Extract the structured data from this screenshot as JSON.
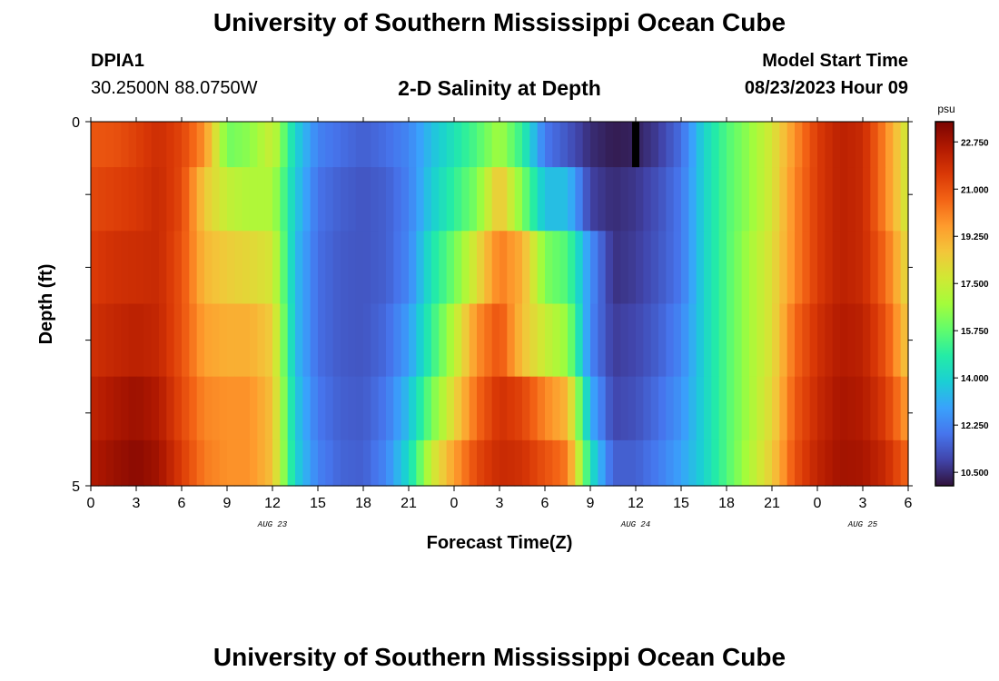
{
  "header": {
    "title": "University of Southern Mississippi Ocean Cube",
    "station_id": "DPIA1",
    "station_coords": "30.2500N  88.0750W",
    "plot_title": "2-D Salinity at Depth",
    "model_start_label": "Model Start Time",
    "model_start_value": "08/23/2023 Hour 09"
  },
  "footer": {
    "title": "University of Southern Mississippi Ocean Cube"
  },
  "colors": {
    "background": "#ffffff",
    "missing": "#000000"
  },
  "chart_data": {
    "type": "heatmap",
    "xlabel": "Forecast Time(Z)",
    "ylabel": "Depth (ft)",
    "colorbar_unit": "psu",
    "x_hours": [
      0,
      54
    ],
    "x_tick_labels": [
      "0",
      "3",
      "6",
      "9",
      "12",
      "15",
      "18",
      "21",
      "0",
      "3",
      "6",
      "9",
      "12",
      "15",
      "18",
      "21",
      "0",
      "3",
      "6"
    ],
    "date_labels": [
      {
        "label": "AUG 23",
        "hour": 12
      },
      {
        "label": "AUG 24",
        "hour": 36
      },
      {
        "label": "AUG 25",
        "hour": 51
      }
    ],
    "y_tick_labels": [
      "0",
      "5"
    ],
    "ylim": [
      0,
      5
    ],
    "colorbar_range": [
      10.0,
      23.5
    ],
    "colorbar_ticks": [
      "10.500",
      "12.250",
      "14.000",
      "15.750",
      "17.500",
      "19.250",
      "21.000",
      "22.750"
    ],
    "colorscale": [
      "#30123b",
      "#4145ab",
      "#4675ed",
      "#39a2fc",
      "#1bcfd4",
      "#24eca6",
      "#61fc6c",
      "#a4fc3b",
      "#d1e834",
      "#f3c63a",
      "#fe9b2d",
      "#f36315",
      "#d93806",
      "#b11901",
      "#7a0402"
    ],
    "rows": [
      {
        "depth": 0.25,
        "values": [
          20.9,
          21.0,
          21.4,
          21.9,
          21.3,
          19.8,
          16.0,
          16.4,
          17.6,
          14.0,
          12.2,
          11.8,
          11.5,
          11.8,
          12.3,
          13.5,
          14.5,
          15.5,
          16.8,
          15.0,
          12.0,
          11.3,
          10.5,
          10.2,
          10.3,
          10.8,
          11.8,
          14.0,
          15.5,
          16.5,
          17.8,
          19.8,
          21.5,
          22.3,
          22.0,
          20.0,
          17.5
        ]
      },
      {
        "depth": 1.0,
        "values": [
          21.2,
          21.4,
          21.6,
          22.0,
          21.2,
          18.6,
          17.4,
          17.0,
          17.0,
          13.8,
          11.9,
          11.5,
          11.3,
          11.5,
          12.2,
          13.8,
          15.0,
          16.2,
          18.8,
          16.2,
          13.5,
          13.5,
          10.9,
          10.5,
          10.7,
          11.2,
          12.0,
          14.0,
          15.5,
          16.5,
          17.8,
          20.0,
          21.5,
          22.3,
          22.0,
          20.0,
          17.5
        ]
      },
      {
        "depth": 2.0,
        "values": [
          21.5,
          21.8,
          21.9,
          22.0,
          21.0,
          19.0,
          18.5,
          18.2,
          17.8,
          13.5,
          11.8,
          11.4,
          11.3,
          11.5,
          12.3,
          14.5,
          16.0,
          18.0,
          20.2,
          19.2,
          16.2,
          15.5,
          12.5,
          10.6,
          10.8,
          11.3,
          12.0,
          14.0,
          15.5,
          16.8,
          18.0,
          20.0,
          21.5,
          22.3,
          22.0,
          20.5,
          18.0
        ]
      },
      {
        "depth": 3.0,
        "values": [
          21.8,
          22.1,
          22.3,
          22.1,
          21.0,
          19.5,
          19.2,
          19.2,
          18.5,
          13.5,
          11.8,
          11.4,
          11.3,
          11.7,
          12.8,
          15.0,
          17.2,
          19.8,
          21.0,
          18.8,
          17.5,
          16.5,
          12.3,
          10.8,
          11.0,
          11.5,
          12.3,
          14.0,
          15.5,
          16.8,
          18.0,
          20.5,
          21.8,
          22.5,
          22.3,
          21.0,
          18.5
        ]
      },
      {
        "depth": 4.0,
        "values": [
          22.2,
          22.6,
          22.9,
          22.5,
          21.2,
          20.0,
          19.8,
          19.8,
          18.8,
          13.8,
          12.0,
          11.5,
          11.4,
          12.0,
          13.5,
          16.0,
          18.2,
          20.5,
          21.8,
          21.3,
          20.0,
          19.0,
          13.2,
          11.0,
          11.2,
          11.8,
          12.6,
          14.0,
          15.5,
          16.8,
          18.2,
          20.8,
          22.0,
          22.7,
          22.5,
          21.5,
          19.5
        ]
      },
      {
        "depth": 4.75,
        "values": [
          22.5,
          22.9,
          23.2,
          22.8,
          21.5,
          20.2,
          19.8,
          19.8,
          18.8,
          14.0,
          12.2,
          11.6,
          11.5,
          12.3,
          14.2,
          17.5,
          19.5,
          21.2,
          22.0,
          21.8,
          21.0,
          20.2,
          14.5,
          11.5,
          11.5,
          12.1,
          12.9,
          14.0,
          15.5,
          17.0,
          18.5,
          21.0,
          22.2,
          22.8,
          22.7,
          22.0,
          20.5
        ]
      }
    ],
    "missing_cells": [
      {
        "hour": 36,
        "depth": 0.25
      }
    ]
  }
}
